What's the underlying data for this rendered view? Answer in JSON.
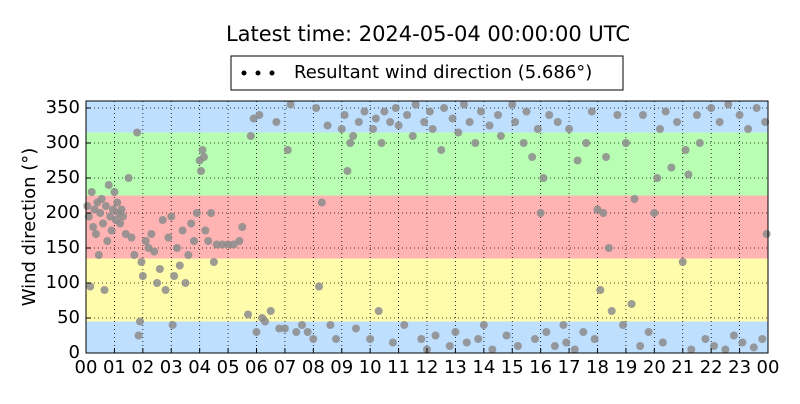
{
  "chart_data": {
    "type": "scatter",
    "title": "Latest time: 2024-05-04 00:00:00 UTC",
    "y_label": "Wind direction (°)",
    "grid": true,
    "legend_position": "top",
    "bands": [
      {
        "from": 0,
        "to": 45,
        "color": "#bfdfff"
      },
      {
        "from": 45,
        "to": 135,
        "color": "#fffcac"
      },
      {
        "from": 135,
        "to": 225,
        "color": "#ffb3b3"
      },
      {
        "from": 225,
        "to": 315,
        "color": "#b9ffb3"
      },
      {
        "from": 315,
        "to": 360,
        "color": "#bfdfff"
      }
    ],
    "xlim": [
      0,
      24
    ],
    "ylim": [
      0,
      360
    ],
    "yticks": [
      0,
      50,
      100,
      150,
      200,
      250,
      300,
      350
    ],
    "xticks": [
      {
        "value": 0,
        "label": "00"
      },
      {
        "value": 1,
        "label": "01"
      },
      {
        "value": 2,
        "label": "02"
      },
      {
        "value": 3,
        "label": "03"
      },
      {
        "value": 4,
        "label": "04"
      },
      {
        "value": 5,
        "label": "05"
      },
      {
        "value": 6,
        "label": "06"
      },
      {
        "value": 7,
        "label": "07"
      },
      {
        "value": 8,
        "label": "08"
      },
      {
        "value": 9,
        "label": "09"
      },
      {
        "value": 10,
        "label": "10"
      },
      {
        "value": 11,
        "label": "11"
      },
      {
        "value": 12,
        "label": "12"
      },
      {
        "value": 13,
        "label": "13"
      },
      {
        "value": 14,
        "label": "14"
      },
      {
        "value": 15,
        "label": "15"
      },
      {
        "value": 16,
        "label": "16"
      },
      {
        "value": 17,
        "label": "17"
      },
      {
        "value": 18,
        "label": "18"
      },
      {
        "value": 19,
        "label": "19"
      },
      {
        "value": 20,
        "label": "20"
      },
      {
        "value": 21,
        "label": "21"
      },
      {
        "value": 22,
        "label": "22"
      },
      {
        "value": 23,
        "label": "23"
      },
      {
        "value": 24,
        "label": "00"
      }
    ],
    "x": [
      0.05,
      0.1,
      0.15,
      0.2,
      0.25,
      0.3,
      0.35,
      0.4,
      0.45,
      0.5,
      0.55,
      0.6,
      0.65,
      0.7,
      0.75,
      0.8,
      0.85,
      0.9,
      0.95,
      1.0,
      1.05,
      1.1,
      1.15,
      1.2,
      1.25,
      1.3,
      1.4,
      1.5,
      1.6,
      1.7,
      1.8,
      1.85,
      1.9,
      1.95,
      2.0,
      2.1,
      2.2,
      2.3,
      2.4,
      2.5,
      2.6,
      2.7,
      2.8,
      2.9,
      3.0,
      3.05,
      3.1,
      3.2,
      3.3,
      3.4,
      3.5,
      3.6,
      3.7,
      3.8,
      3.9,
      4.0,
      4.05,
      4.1,
      4.15,
      4.2,
      4.3,
      4.4,
      4.5,
      4.6,
      4.8,
      5.0,
      5.2,
      5.4,
      5.5,
      5.7,
      5.8,
      5.9,
      6.0,
      6.1,
      6.2,
      6.3,
      6.5,
      6.7,
      6.8,
      7.0,
      7.1,
      7.2,
      7.4,
      7.6,
      7.8,
      8.0,
      8.1,
      8.2,
      8.3,
      8.5,
      8.6,
      8.8,
      9.0,
      9.1,
      9.2,
      9.3,
      9.4,
      9.5,
      9.6,
      9.8,
      10.0,
      10.1,
      10.2,
      10.3,
      10.4,
      10.5,
      10.7,
      10.8,
      10.9,
      11.0,
      11.2,
      11.3,
      11.5,
      11.6,
      11.8,
      11.9,
      12.0,
      12.1,
      12.2,
      12.3,
      12.5,
      12.6,
      12.8,
      12.9,
      13.0,
      13.1,
      13.3,
      13.4,
      13.5,
      13.7,
      13.8,
      13.9,
      14.0,
      14.2,
      14.3,
      14.5,
      14.6,
      14.8,
      15.0,
      15.1,
      15.2,
      15.4,
      15.5,
      15.7,
      15.8,
      15.9,
      16.0,
      16.1,
      16.2,
      16.3,
      16.5,
      16.6,
      16.8,
      16.9,
      17.0,
      17.2,
      17.3,
      17.5,
      17.6,
      17.8,
      17.9,
      18.0,
      18.1,
      18.2,
      18.3,
      18.4,
      18.5,
      18.7,
      18.9,
      19.0,
      19.2,
      19.3,
      19.5,
      19.6,
      19.8,
      20.0,
      20.1,
      20.2,
      20.3,
      20.4,
      20.6,
      20.8,
      21.0,
      21.1,
      21.2,
      21.3,
      21.5,
      21.6,
      21.8,
      22.0,
      22.1,
      22.3,
      22.5,
      22.6,
      22.8,
      23.0,
      23.1,
      23.3,
      23.5,
      23.6,
      23.8,
      23.9,
      23.95
    ],
    "series": [
      {
        "name": "Resultant wind direction (5.686°)",
        "color": "#8c8c8c",
        "values": [
          210,
          195,
          95,
          230,
          180,
          205,
          170,
          215,
          140,
          200,
          220,
          185,
          90,
          210,
          160,
          240,
          195,
          175,
          205,
          230,
          190,
          215,
          200,
          185,
          205,
          195,
          170,
          250,
          165,
          140,
          315,
          25,
          45,
          130,
          110,
          160,
          150,
          170,
          145,
          100,
          120,
          190,
          90,
          165,
          195,
          40,
          110,
          150,
          125,
          175,
          100,
          140,
          185,
          160,
          200,
          275,
          260,
          290,
          280,
          175,
          160,
          200,
          130,
          155,
          155,
          155,
          155,
          160,
          180,
          55,
          310,
          335,
          30,
          340,
          50,
          45,
          60,
          330,
          35,
          35,
          290,
          355,
          30,
          40,
          30,
          20,
          350,
          95,
          215,
          325,
          40,
          20,
          320,
          340,
          260,
          300,
          310,
          35,
          330,
          345,
          20,
          320,
          335,
          60,
          300,
          345,
          330,
          15,
          350,
          325,
          40,
          340,
          310,
          355,
          20,
          330,
          5,
          345,
          320,
          25,
          290,
          350,
          10,
          335,
          30,
          315,
          355,
          15,
          330,
          300,
          20,
          345,
          40,
          325,
          5,
          340,
          310,
          25,
          355,
          330,
          10,
          300,
          345,
          280,
          20,
          320,
          200,
          250,
          30,
          340,
          10,
          330,
          40,
          15,
          320,
          5,
          275,
          30,
          300,
          345,
          20,
          205,
          90,
          200,
          280,
          150,
          60,
          340,
          40,
          300,
          70,
          220,
          10,
          340,
          30,
          200,
          250,
          320,
          15,
          345,
          265,
          330,
          130,
          290,
          255,
          5,
          340,
          300,
          20,
          350,
          10,
          330,
          5,
          355,
          25,
          340,
          15,
          320,
          8,
          350,
          20,
          330,
          170
        ]
      }
    ]
  }
}
